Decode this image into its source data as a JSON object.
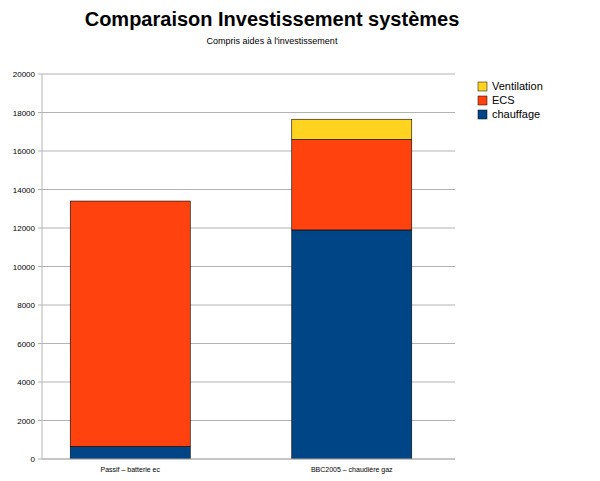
{
  "chart_data": {
    "type": "bar",
    "title": "Comparaison Investissement systèmes",
    "subtitle": "Compris aides à l'investissement",
    "categories": [
      "Passif – batterie ec",
      "BBC2005 – chaudière gaz"
    ],
    "series": [
      {
        "name": "chauffage",
        "color": "#004586",
        "values": [
          650,
          11900
        ]
      },
      {
        "name": "ECS",
        "color": "#ff420e",
        "values": [
          12750,
          4700
        ]
      },
      {
        "name": "Ventilation",
        "color": "#ffd320",
        "values": [
          0,
          1050
        ]
      }
    ],
    "stacked": true,
    "ylim": [
      0,
      20000
    ],
    "yticks": [
      0,
      2000,
      4000,
      6000,
      8000,
      10000,
      12000,
      14000,
      16000,
      18000,
      20000
    ],
    "grid": true,
    "legend": "right"
  }
}
